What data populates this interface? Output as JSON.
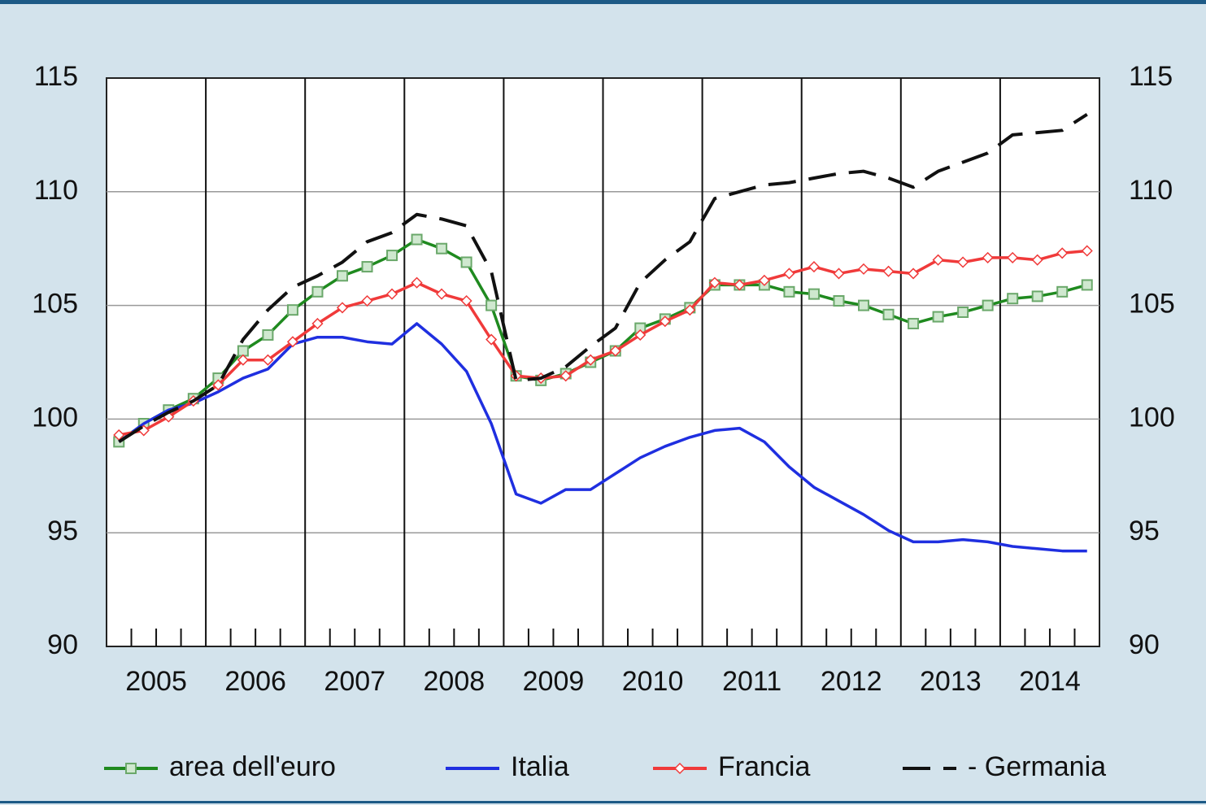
{
  "chart_data": {
    "type": "line",
    "categories": [
      "2005",
      null,
      null,
      null,
      "2006",
      null,
      null,
      null,
      "2007",
      null,
      null,
      null,
      "2008",
      null,
      null,
      null,
      "2009",
      null,
      null,
      null,
      "2010",
      null,
      null,
      null,
      "2011",
      null,
      null,
      null,
      "2012",
      null,
      null,
      null,
      "2013",
      null,
      null,
      null,
      "2014",
      null,
      null,
      null
    ],
    "ylim": [
      90,
      115
    ],
    "yticks": [
      90,
      95,
      100,
      105,
      110,
      115
    ],
    "y2lim": [
      90,
      115
    ],
    "y2ticks": [
      90,
      95,
      100,
      105,
      110,
      115
    ],
    "grid": true,
    "legend": "bottom",
    "series": [
      {
        "name": "area dell'euro",
        "color": "#1f8a1f",
        "marker": "square",
        "dash": false,
        "values": [
          99.0,
          99.8,
          100.4,
          100.9,
          101.8,
          103.0,
          103.7,
          104.8,
          105.6,
          106.3,
          106.7,
          107.2,
          107.9,
          107.5,
          106.9,
          105.0,
          101.9,
          101.7,
          102.0,
          102.5,
          103.0,
          104.0,
          104.4,
          104.9,
          105.9,
          105.9,
          105.9,
          105.6,
          105.5,
          105.2,
          105.0,
          104.6,
          104.2,
          104.5,
          104.7,
          105.0,
          105.3,
          105.4,
          105.6,
          105.9
        ]
      },
      {
        "name": "Italia",
        "color": "#1f2fe0",
        "marker": "none",
        "dash": false,
        "values": [
          99.0,
          99.8,
          100.4,
          100.7,
          101.2,
          101.8,
          102.2,
          103.3,
          103.6,
          103.6,
          103.4,
          103.3,
          104.2,
          103.3,
          102.1,
          99.8,
          96.7,
          96.3,
          96.9,
          96.9,
          97.6,
          98.3,
          98.8,
          99.2,
          99.5,
          99.6,
          99.0,
          97.9,
          97.0,
          96.4,
          95.8,
          95.1,
          94.6,
          94.6,
          94.7,
          94.6,
          94.4,
          94.3,
          94.2,
          94.2
        ]
      },
      {
        "name": "Francia",
        "color": "#f03a3a",
        "marker": "diamond",
        "dash": false,
        "values": [
          99.3,
          99.5,
          100.1,
          100.8,
          101.5,
          102.6,
          102.6,
          103.4,
          104.2,
          104.9,
          105.2,
          105.5,
          106.0,
          105.5,
          105.2,
          103.5,
          101.9,
          101.8,
          101.9,
          102.6,
          103.0,
          103.7,
          104.3,
          104.8,
          106.0,
          105.9,
          106.1,
          106.4,
          106.7,
          106.4,
          106.6,
          106.5,
          106.4,
          107.0,
          106.9,
          107.1,
          107.1,
          107.0,
          107.3,
          107.4
        ]
      },
      {
        "name": "- Germania",
        "color": "#111111",
        "marker": "none",
        "dash": true,
        "values": [
          99.0,
          99.7,
          100.3,
          100.8,
          101.5,
          103.5,
          104.8,
          105.8,
          106.3,
          106.9,
          107.8,
          108.2,
          109.0,
          108.8,
          108.5,
          106.5,
          101.7,
          101.8,
          102.3,
          103.2,
          104.0,
          106.0,
          107.0,
          107.8,
          109.7,
          110.0,
          110.3,
          110.4,
          110.6,
          110.8,
          110.9,
          110.6,
          110.2,
          110.9,
          111.3,
          111.7,
          112.5,
          112.6,
          112.7,
          113.4
        ]
      }
    ]
  }
}
